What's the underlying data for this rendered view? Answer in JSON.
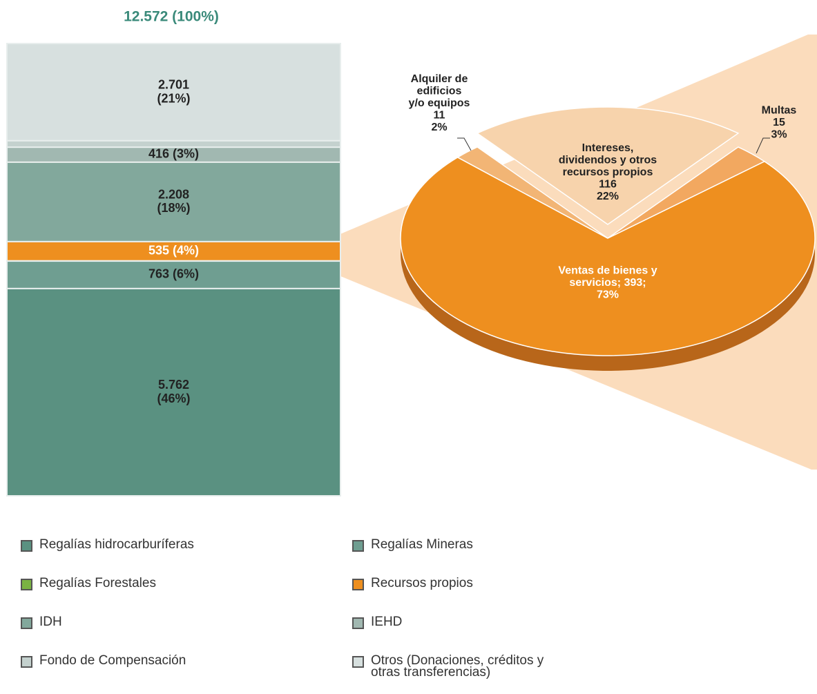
{
  "chart_data": [
    {
      "type": "stacked-bar",
      "title": "12.572 (100%)",
      "ylim": [
        0,
        12572
      ],
      "series": [
        {
          "name": "Regalías hidrocarburíferas",
          "color": "#5a9181",
          "values": [
            5762
          ],
          "value_labels": [
            "5.762\n(46%)"
          ]
        },
        {
          "name": "Regalías Mineras",
          "color": "#6f9e91",
          "values": [
            763
          ],
          "value_labels": [
            "763 (6%)"
          ]
        },
        {
          "name": "Regalías Forestales",
          "color": "#7ab342",
          "values": [
            7
          ],
          "value_labels": [
            null
          ]
        },
        {
          "name": "Recursos propios",
          "color": "#ee8f1f",
          "values": [
            535
          ],
          "value_labels": [
            "535 (4%)"
          ]
        },
        {
          "name": "IDH",
          "color": "#82a89c",
          "values": [
            2208
          ],
          "value_labels": [
            "2.208\n(18%)"
          ]
        },
        {
          "name": "IEHD",
          "color": "#a1b8b1",
          "values": [
            416
          ],
          "value_labels": [
            "416 (3%)"
          ]
        },
        {
          "name": "Fondo de Compensación",
          "color": "#c4d1ce",
          "values": [
            180
          ],
          "value_labels": [
            null
          ]
        },
        {
          "name": "Otros (Donaciones, créditos y otras transferencias)",
          "color": "#d7e0df",
          "values": [
            2701
          ],
          "value_labels": [
            "2.701\n(21%)"
          ]
        }
      ]
    },
    {
      "type": "pie",
      "values": [
        393,
        116,
        11,
        15
      ],
      "value_labels": [
        "Ventas de bienes y\nservicios; 393;\n73%",
        "Intereses,\ndividendos y otros\nrecursos propios\n116\n22%",
        "Alquiler de\nedificios\ny/o equipos\n11\n2%",
        "Multas\n15\n3%"
      ],
      "colors": [
        "#ee8f1f",
        "#f7d3ac",
        "#f2b575",
        "#f2a860"
      ],
      "exploded": [
        false,
        true,
        false,
        false
      ]
    }
  ]
}
